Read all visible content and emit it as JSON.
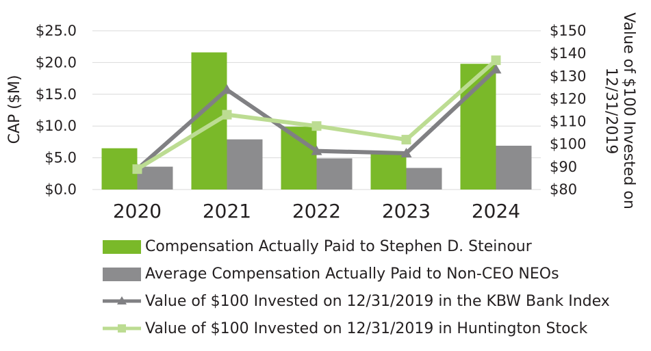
{
  "chart_data": {
    "type": "bar",
    "categories": [
      "2020",
      "2021",
      "2022",
      "2023",
      "2024"
    ],
    "series": [
      {
        "name": "Compensation Actually Paid to Stephen D. Steinour",
        "kind": "bar",
        "axis": "left",
        "values": [
          6.5,
          21.6,
          9.9,
          5.9,
          19.8
        ],
        "color": "#7ab929"
      },
      {
        "name": "Average Compensation Actually Paid to Non-CEO NEOs",
        "kind": "bar",
        "axis": "left",
        "values": [
          3.6,
          7.9,
          4.9,
          3.4,
          6.9
        ],
        "color": "#8c8c8e"
      },
      {
        "name": "Value of $100 Invested on 12/31/2019 in the KBW Bank Index",
        "kind": "line",
        "marker": "triangle",
        "axis": "right",
        "values": [
          89,
          124,
          97,
          96,
          133
        ],
        "color": "#808083"
      },
      {
        "name": "Value of $100 Invested on 12/31/2019 in Huntington Stock",
        "kind": "line",
        "marker": "square",
        "axis": "right",
        "values": [
          89,
          113,
          108,
          102,
          137
        ],
        "color": "#bcdc92"
      }
    ],
    "ylabel": "CAP ($M)",
    "ylim": [
      0,
      25
    ],
    "yticks": [
      "$0.0",
      "$5.0",
      "$10.0",
      "$15.0",
      "$20.0",
      "$25.0"
    ],
    "y2label_line1": "Value of $100 Invested on",
    "y2label_line2": "12/31/2019",
    "y2lim": [
      80,
      150
    ],
    "y2ticks": [
      "$80",
      "$90",
      "$100",
      "$110",
      "$120",
      "$130",
      "$140",
      "$150"
    ],
    "grid": true,
    "legend": "bottom"
  }
}
